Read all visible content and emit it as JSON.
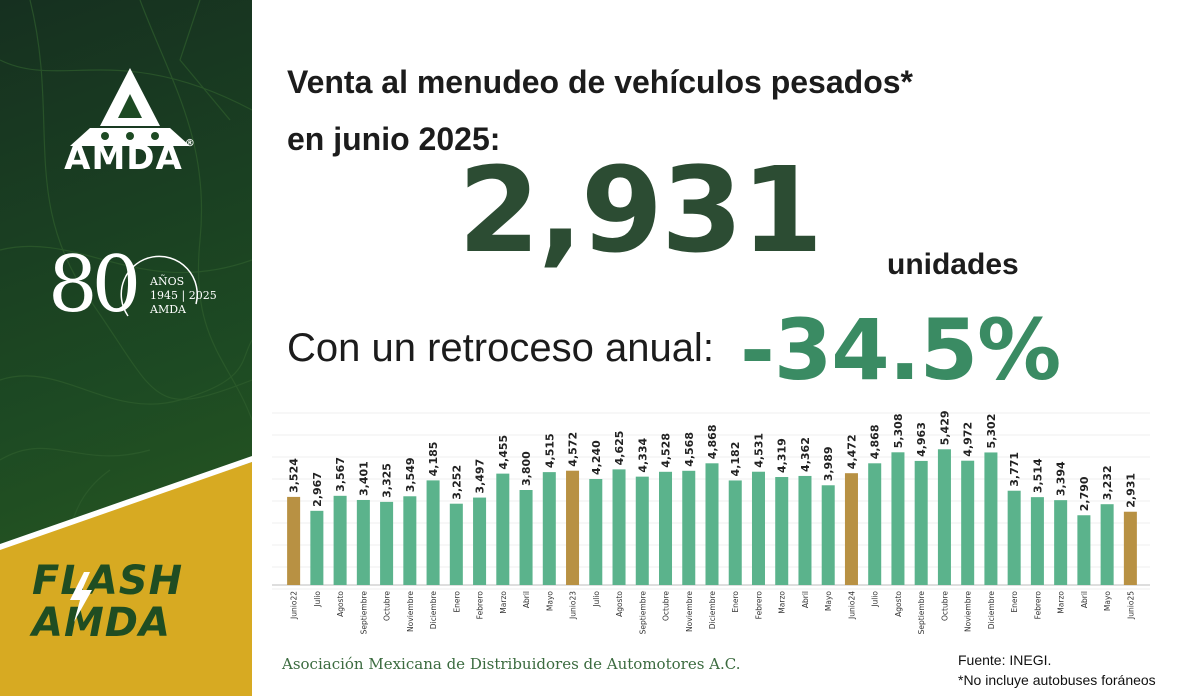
{
  "brand": {
    "logo_text": "AMDA",
    "logo_mark": "®",
    "anniversary_number": "80",
    "anniversary_label": "AÑOS",
    "anniversary_years": "1945 | 2025",
    "anniversary_org": "AMDA",
    "flash_line1": "FLASH",
    "flash_line2": "AMDA"
  },
  "colors": {
    "dark_green": "#1d4a23",
    "gold": "#d7aa22",
    "bar_green": "#5bb38c",
    "bar_gold": "#b89143",
    "headline_green": "#2c4c33",
    "accent_green": "#3a8b63"
  },
  "headline": {
    "line1": "Venta al menudeo de vehículos pesados*",
    "line2": "en junio 2025:"
  },
  "kpi": {
    "value": "2,931",
    "unit": "unidades",
    "change_label": "Con un retroceso anual:",
    "change_value": "-34.5%"
  },
  "footer": {
    "org": "Asociación Mexicana de Distribuidores de Automotores A.C.",
    "source": "Fuente: INEGI.",
    "note": "*No incluye autobuses foráneos"
  },
  "chart_data": {
    "type": "bar",
    "title": "",
    "xlabel": "",
    "ylabel": "",
    "ylim": [
      0,
      5800
    ],
    "categories": [
      "Junio22",
      "Julio",
      "Agosto",
      "Septiembre",
      "Octubre",
      "Noviembre",
      "Diciembre",
      "Enero",
      "Febrero",
      "Marzo",
      "Abril",
      "Mayo",
      "Junio23",
      "Julio",
      "Agosto",
      "Septiembre",
      "Octubre",
      "Noviembre",
      "Diciembre",
      "Enero",
      "Febrero",
      "Marzo",
      "Abril",
      "Mayo",
      "Junio24",
      "Julio",
      "Agosto",
      "Septiembre",
      "Octubre",
      "Noviembre",
      "Diciembre",
      "Enero",
      "Febrero",
      "Marzo",
      "Abril",
      "Mayo",
      "Junio25"
    ],
    "values": [
      3524,
      2967,
      3567,
      3401,
      3325,
      3549,
      4185,
      3252,
      3497,
      4455,
      3800,
      4515,
      4572,
      4240,
      4625,
      4334,
      4528,
      4568,
      4868,
      4182,
      4531,
      4319,
      4362,
      3989,
      4472,
      4868,
      5308,
      4963,
      5429,
      4972,
      5302,
      3771,
      3514,
      3394,
      2790,
      3232,
      2931
    ],
    "value_labels": [
      "3,524",
      "2,967",
      "3,567",
      "3,401",
      "3,325",
      "3,549",
      "4,185",
      "3,252",
      "3,497",
      "4,455",
      "3,800",
      "4,515",
      "4,572",
      "4,240",
      "4,625",
      "4,334",
      "4,528",
      "4,568",
      "4,868",
      "4,182",
      "4,531",
      "4,319",
      "4,362",
      "3,989",
      "4,472",
      "4,868",
      "5,308",
      "4,963",
      "5,429",
      "4,972",
      "5,302",
      "3,771",
      "3,514",
      "3,394",
      "2,790",
      "3,232",
      "2,931"
    ],
    "highlighted": [
      "Junio22",
      "Junio23",
      "Junio24",
      "Junio25"
    ],
    "grid": true
  }
}
